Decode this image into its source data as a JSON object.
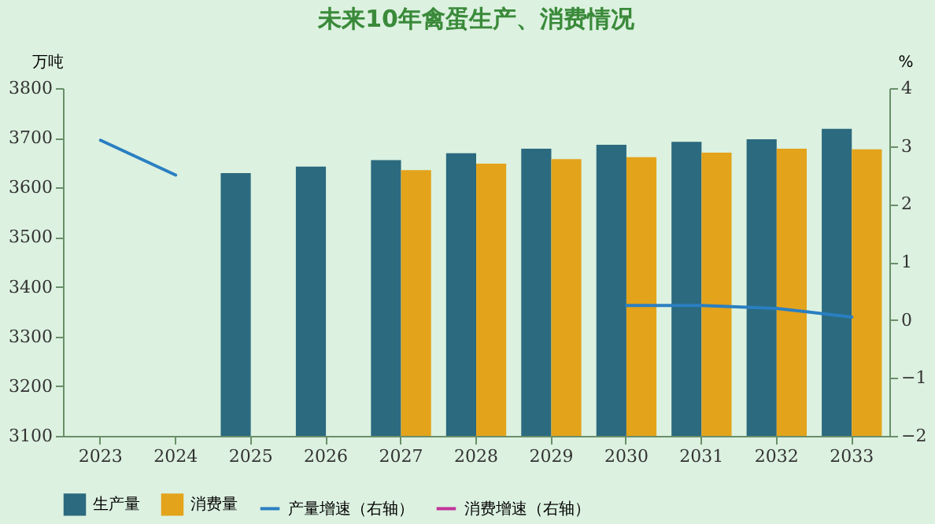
{
  "chart_data": {
    "type": "bar",
    "title": "未来10年禽蛋生产、消费情况",
    "ylabel": "万吨",
    "y2label": "%",
    "categories": [
      "2023",
      "2024",
      "2025",
      "2026",
      "2027",
      "2028",
      "2029",
      "2030",
      "2031",
      "2032",
      "2033"
    ],
    "series": [
      {
        "name": "生产量",
        "color": "#2b6a7f",
        "values": [
          null,
          null,
          3629,
          3642,
          3655,
          3669,
          3678,
          3686,
          3692,
          3697,
          3718
        ]
      },
      {
        "name": "消费量",
        "color": "#e3a31b",
        "values": [
          null,
          null,
          null,
          null,
          3635,
          3648,
          3657,
          3661,
          3670,
          3678,
          3677
        ]
      },
      {
        "name": "产量增速（右轴）",
        "type": "line",
        "axis": "y2",
        "color": "#2a7fc1",
        "values": [
          3.1,
          2.5,
          null,
          null,
          null,
          null,
          null,
          0.25,
          0.25,
          0.2,
          0.05
        ]
      },
      {
        "name": "消费增速（右轴）",
        "type": "line",
        "axis": "y2",
        "color": "#c2339a",
        "values": [
          null,
          null,
          null,
          null,
          null,
          null,
          null,
          null,
          null,
          null,
          null
        ]
      }
    ],
    "ylim": [
      3100,
      3800
    ],
    "yticks": [
      3100,
      3200,
      3300,
      3400,
      3500,
      3600,
      3700,
      3800
    ],
    "y2lim": [
      -2,
      4
    ],
    "y2ticks": [
      -2,
      -1,
      0,
      1,
      2,
      3,
      4
    ],
    "legend": "bottom",
    "grid": false
  }
}
